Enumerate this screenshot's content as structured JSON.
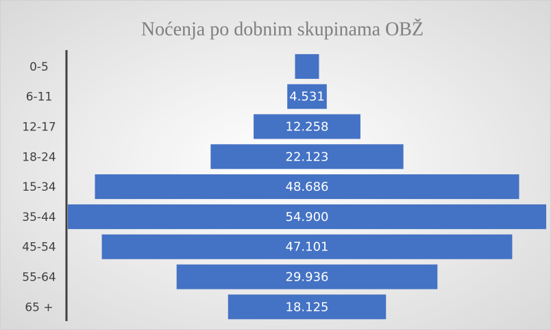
{
  "chart_data": {
    "type": "funnel",
    "title": "Noćenja po dobnim skupinama OBŽ",
    "categories": [
      "0-5",
      "6-11",
      "12-17",
      "18-24",
      "15-34",
      "35-44",
      "45-54",
      "55-64",
      "65 +"
    ],
    "values": [
      2750,
      4531,
      12258,
      22123,
      48686,
      54900,
      47101,
      29936,
      18125
    ],
    "value_labels": [
      null,
      "4.531",
      "12.258",
      "22.123",
      "48.686",
      "54.900",
      "47.101",
      "29.936",
      "18.125"
    ],
    "color": "#4472c4"
  }
}
